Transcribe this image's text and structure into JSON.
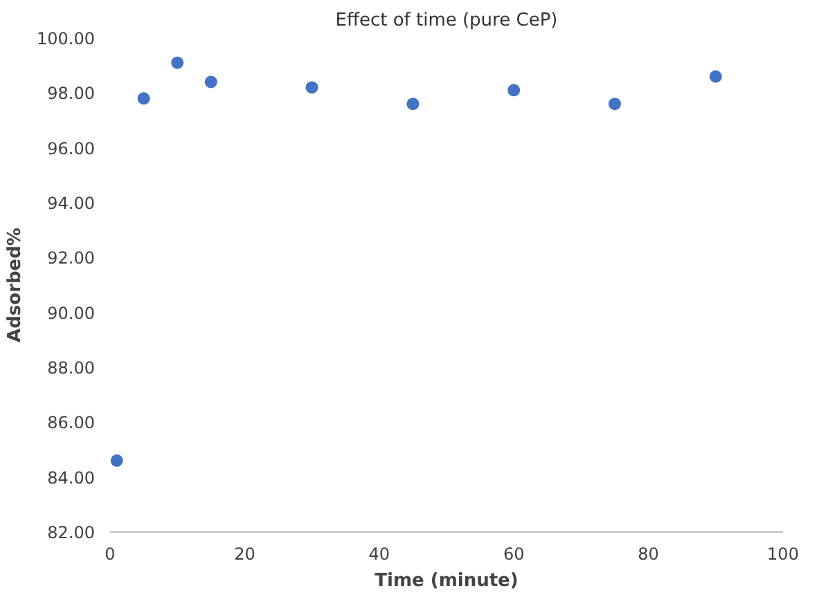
{
  "chart_data": {
    "type": "scatter",
    "title": "Effect of time (pure CeP)",
    "xlabel": "Time (minute)",
    "ylabel": "Adsorbed%",
    "x": [
      1,
      5,
      10,
      15,
      30,
      45,
      60,
      75,
      90
    ],
    "series": [
      {
        "color": "#4472c4",
        "values": [
          84.6,
          97.8,
          99.1,
          98.4,
          98.2,
          97.6,
          98.1,
          97.6,
          98.6
        ]
      }
    ],
    "xlim": [
      0,
      100
    ],
    "xticks": [
      0,
      20,
      40,
      60,
      80,
      100
    ],
    "ylim": [
      82,
      100
    ],
    "yticks": [
      {
        "value": 82,
        "label": "82.00"
      },
      {
        "value": 84,
        "label": "84.00"
      },
      {
        "value": 86,
        "label": "86.00"
      },
      {
        "value": 88,
        "label": "88.00"
      },
      {
        "value": 90,
        "label": "90.00"
      },
      {
        "value": 92,
        "label": "92.00"
      },
      {
        "value": 94,
        "label": "94.00"
      },
      {
        "value": 96,
        "label": "96.00"
      },
      {
        "value": 98,
        "label": "98.00"
      },
      {
        "value": 100,
        "label": "100.00"
      }
    ],
    "marker": "circle",
    "grid": false
  }
}
